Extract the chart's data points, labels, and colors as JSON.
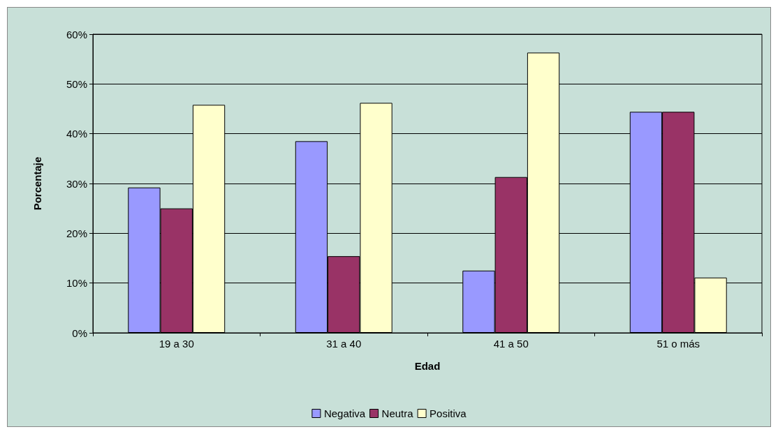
{
  "chart_data": {
    "type": "bar",
    "xlabel": "Edad",
    "ylabel": "Porcentaje",
    "categories": [
      "19 a 30",
      "31 a 40",
      "41 a 50",
      "51 o más"
    ],
    "series": [
      {
        "name": "Negativa",
        "color": "#9999ff",
        "values": [
          29.2,
          38.5,
          12.5,
          44.4
        ]
      },
      {
        "name": "Neutra",
        "color": "#993366",
        "values": [
          25,
          15.4,
          31.3,
          44.4
        ]
      },
      {
        "name": "Positiva",
        "color": "#ffffcc",
        "values": [
          45.8,
          46.2,
          56.3,
          11.1
        ]
      }
    ],
    "ylim": [
      0,
      60
    ],
    "yticks": [
      {
        "value": 0,
        "label": "0%"
      },
      {
        "value": 10,
        "label": "10%"
      },
      {
        "value": 20,
        "label": "20%"
      },
      {
        "value": 30,
        "label": "30%"
      },
      {
        "value": 40,
        "label": "40%"
      },
      {
        "value": 50,
        "label": "50%"
      },
      {
        "value": 60,
        "label": "60%"
      }
    ],
    "grid": "y",
    "legend": "bottom"
  }
}
